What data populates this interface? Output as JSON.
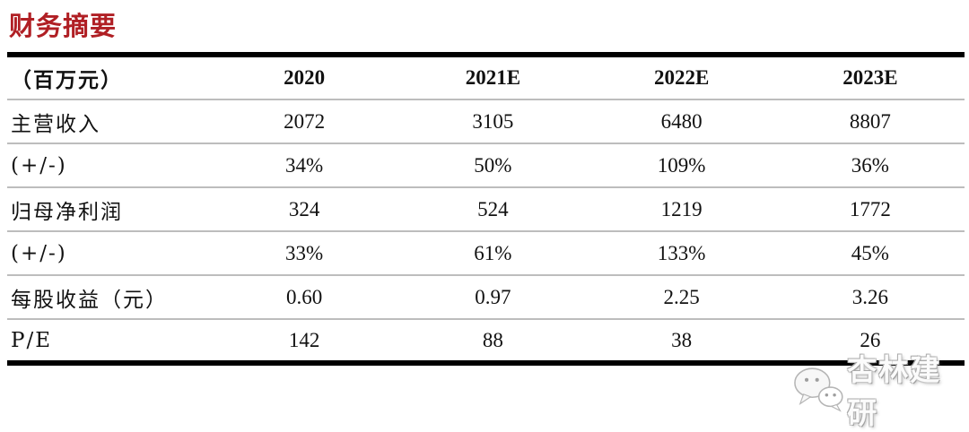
{
  "page": {
    "title": "财务摘要"
  },
  "table": {
    "unit_header": "（百万元）",
    "columns": [
      "2020",
      "2021E",
      "2022E",
      "2023E"
    ],
    "rows": [
      {
        "label": "主营收入",
        "values": [
          "2072",
          "3105",
          "6480",
          "8807"
        ]
      },
      {
        "label": "(+/-)",
        "values": [
          "34%",
          "50%",
          "109%",
          "36%"
        ]
      },
      {
        "label": "归母净利润",
        "values": [
          "324",
          "524",
          "1219",
          "1772"
        ]
      },
      {
        "label": "(+/-)",
        "values": [
          "33%",
          "61%",
          "133%",
          "45%"
        ]
      },
      {
        "label": "每股收益（元）",
        "values": [
          "0.60",
          "0.97",
          "2.25",
          "3.26"
        ]
      },
      {
        "label": "P/E",
        "values": [
          "142",
          "88",
          "38",
          "26"
        ]
      }
    ]
  },
  "watermark": {
    "icon": "wechat-icon",
    "text": "杏林建研"
  },
  "colors": {
    "title_red": "#b01f24",
    "border_black": "#000000",
    "separator_gray": "#bdbdbd",
    "watermark_gray": "#bfbfbf",
    "background": "#ffffff"
  }
}
